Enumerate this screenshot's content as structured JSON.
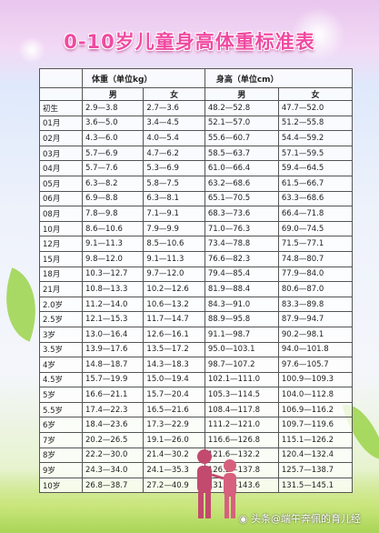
{
  "title": "0-10岁儿童身高体重标准表",
  "header": {
    "weight_label": "体重（单位kg）",
    "height_label": "身高（单位cm）",
    "male": "男",
    "female": "女"
  },
  "rows": [
    {
      "age": "初生",
      "wm": "2.9—3.8",
      "wf": "2.7—3.6",
      "hm": "48.2—52.8",
      "hf": "47.7—52.0"
    },
    {
      "age": "01月",
      "wm": "3.6—5.0",
      "wf": "3.4—4.5",
      "hm": "52.1—57.0",
      "hf": "51.2—55.8"
    },
    {
      "age": "02月",
      "wm": "4.3—6.0",
      "wf": "4.0—5.4",
      "hm": "55.6—60.7",
      "hf": "54.4—59.2"
    },
    {
      "age": "03月",
      "wm": "5.7—6.9",
      "wf": "4.7—6.2",
      "hm": "58.5—63.7",
      "hf": "57.1—59.5"
    },
    {
      "age": "04月",
      "wm": "5.7—7.6",
      "wf": "5.3—6.9",
      "hm": "61.0—66.4",
      "hf": "59.4—64.5"
    },
    {
      "age": "05月",
      "wm": "6.3—8.2",
      "wf": "5.8—7.5",
      "hm": "63.2—68.6",
      "hf": "61.5—66.7"
    },
    {
      "age": "06月",
      "wm": "6.9—8.8",
      "wf": "6.3—8.1",
      "hm": "65.1—70.5",
      "hf": "63.3—68.6"
    },
    {
      "age": "08月",
      "wm": "7.8—9.8",
      "wf": "7.1—9.1",
      "hm": "68.3—73.6",
      "hf": "66.4—71.8"
    },
    {
      "age": "10月",
      "wm": "8.6—10.6",
      "wf": "7.9—9.9",
      "hm": "71.0—76.3",
      "hf": "69.0—74.5"
    },
    {
      "age": "12月",
      "wm": "9.1—11.3",
      "wf": "8.5—10.6",
      "hm": "73.4—78.8",
      "hf": "71.5—77.1"
    },
    {
      "age": "15月",
      "wm": "9.8—12.0",
      "wf": "9.1—11.3",
      "hm": "76.6—82.3",
      "hf": "74.8—80.7"
    },
    {
      "age": "18月",
      "wm": "10.3—12.7",
      "wf": "9.7—12.0",
      "hm": "79.4—85.4",
      "hf": "77.9—84.0"
    },
    {
      "age": "21月",
      "wm": "10.8—13.3",
      "wf": "10.2—12.6",
      "hm": "81.9—88.4",
      "hf": "80.6—87.0"
    },
    {
      "age": "2.0岁",
      "wm": "11.2—14.0",
      "wf": "10.6—13.2",
      "hm": "84.3—91.0",
      "hf": "83.3—89.8"
    },
    {
      "age": "2.5岁",
      "wm": "12.1—15.3",
      "wf": "11.7—14.7",
      "hm": "88.9—95.8",
      "hf": "87.9—94.7"
    },
    {
      "age": "3岁",
      "wm": "13.0—16.4",
      "wf": "12.6—16.1",
      "hm": "91.1—98.7",
      "hf": "90.2—98.1"
    },
    {
      "age": "3.5岁",
      "wm": "13.9—17.6",
      "wf": "13.5—17.2",
      "hm": "95.0—103.1",
      "hf": "94.0—101.8"
    },
    {
      "age": "4岁",
      "wm": "14.8—18.7",
      "wf": "14.3—18.3",
      "hm": "98.7—107.2",
      "hf": "97.6—105.7"
    },
    {
      "age": "4.5岁",
      "wm": "15.7—19.9",
      "wf": "15.0—19.4",
      "hm": "102.1—111.0",
      "hf": "100.9—109.3"
    },
    {
      "age": "5岁",
      "wm": "16.6—21.1",
      "wf": "15.7—20.4",
      "hm": "105.3—114.5",
      "hf": "104.0—112.8"
    },
    {
      "age": "5.5岁",
      "wm": "17.4—22.3",
      "wf": "16.5—21.6",
      "hm": "108.4—117.8",
      "hf": "106.9—116.2"
    },
    {
      "age": "6岁",
      "wm": "18.4—23.6",
      "wf": "17.3—22.9",
      "hm": "111.2—121.0",
      "hf": "109.7—119.6"
    },
    {
      "age": "7岁",
      "wm": "20.2—26.5",
      "wf": "19.1—26.0",
      "hm": "116.6—126.8",
      "hf": "115.1—126.2"
    },
    {
      "age": "8岁",
      "wm": "22.2—30.0",
      "wf": "21.4—30.2",
      "hm": "121.6—132.2",
      "hf": "120.4—132.4"
    },
    {
      "age": "9岁",
      "wm": "24.3—34.0",
      "wf": "24.1—35.3",
      "hm": "126.5—137.8",
      "hf": "125.7—138.7"
    },
    {
      "age": "10岁",
      "wm": "26.8—38.7",
      "wf": "27.2—40.9",
      "hm": "131.4—143.6",
      "hf": "131.5—145.1"
    }
  ],
  "watermark": "头条@端午奔佩的育儿经",
  "colors": {
    "title": "#f04aa2",
    "grid": "#555555"
  }
}
